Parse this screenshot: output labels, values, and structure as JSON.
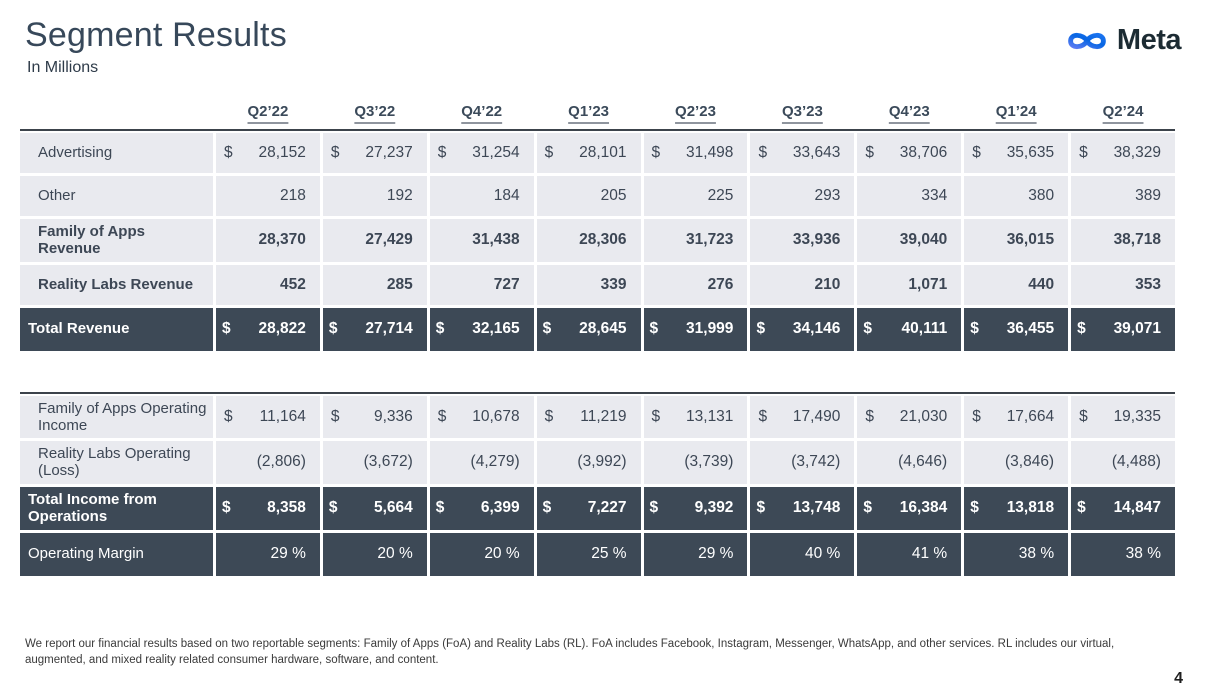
{
  "header": {
    "title": "Segment Results",
    "subtitle": "In Millions",
    "logo_text": "Meta",
    "logo_icon": "meta-infinity-icon"
  },
  "colors": {
    "brand_blue": "#0866E3",
    "brand_blue_light": "#5B7BF2",
    "title_text": "#37485A",
    "dark_row_bg": "#3D4956",
    "light_row_bg": "#E9EAEF",
    "table_text": "#3D4755",
    "dark_row_text": "#FFFFFF"
  },
  "table": {
    "currency_symbol": "$",
    "quarters": [
      "Q2’22",
      "Q3’22",
      "Q4’22",
      "Q1’23",
      "Q2’23",
      "Q3’23",
      "Q4’23",
      "Q1’24",
      "Q2’24"
    ],
    "revenue_rows": [
      {
        "label": "Advertising",
        "dollar": true,
        "bold": false,
        "dark": false,
        "values": [
          "28,152",
          "27,237",
          "31,254",
          "28,101",
          "31,498",
          "33,643",
          "38,706",
          "35,635",
          "38,329"
        ]
      },
      {
        "label": "Other",
        "dollar": false,
        "bold": false,
        "dark": false,
        "values": [
          "218",
          "192",
          "184",
          "205",
          "225",
          "293",
          "334",
          "380",
          "389"
        ]
      },
      {
        "label": "Family of Apps Revenue",
        "dollar": false,
        "bold": true,
        "dark": false,
        "values": [
          "28,370",
          "27,429",
          "31,438",
          "28,306",
          "31,723",
          "33,936",
          "39,040",
          "36,015",
          "38,718"
        ]
      },
      {
        "label": "Reality Labs Revenue",
        "dollar": false,
        "bold": true,
        "dark": false,
        "values": [
          "452",
          "285",
          "727",
          "339",
          "276",
          "210",
          "1,071",
          "440",
          "353"
        ]
      },
      {
        "label": "Total Revenue",
        "dollar": true,
        "bold": true,
        "dark": true,
        "values": [
          "28,822",
          "27,714",
          "32,165",
          "28,645",
          "31,999",
          "34,146",
          "40,111",
          "36,455",
          "39,071"
        ]
      }
    ],
    "income_rows": [
      {
        "label": "Family of Apps Operating Income",
        "dollar": true,
        "bold": false,
        "dark": false,
        "values": [
          "11,164",
          "9,336",
          "10,678",
          "11,219",
          "13,131",
          "17,490",
          "21,030",
          "17,664",
          "19,335"
        ]
      },
      {
        "label": "Reality Labs Operating (Loss)",
        "dollar": false,
        "bold": false,
        "dark": false,
        "values": [
          "(2,806)",
          "(3,672)",
          "(4,279)",
          "(3,992)",
          "(3,739)",
          "(3,742)",
          "(4,646)",
          "(3,846)",
          "(4,488)"
        ]
      },
      {
        "label": "Total Income from Operations",
        "dollar": true,
        "bold": true,
        "dark": true,
        "values": [
          "8,358",
          "5,664",
          "6,399",
          "7,227",
          "9,392",
          "13,748",
          "16,384",
          "13,818",
          "14,847"
        ]
      },
      {
        "label": "Operating Margin",
        "dollar": false,
        "bold": false,
        "dark": true,
        "values": [
          "29 %",
          "20 %",
          "20 %",
          "25 %",
          "29 %",
          "40 %",
          "41 %",
          "38 %",
          "38 %"
        ]
      }
    ]
  },
  "footnote": "We report our financial results based on two reportable segments: Family of Apps (FoA) and Reality Labs (RL). FoA includes Facebook, Instagram, Messenger, WhatsApp, and other services. RL includes our virtual, augmented, and mixed reality related consumer hardware, software, and content.",
  "page_number": "4"
}
